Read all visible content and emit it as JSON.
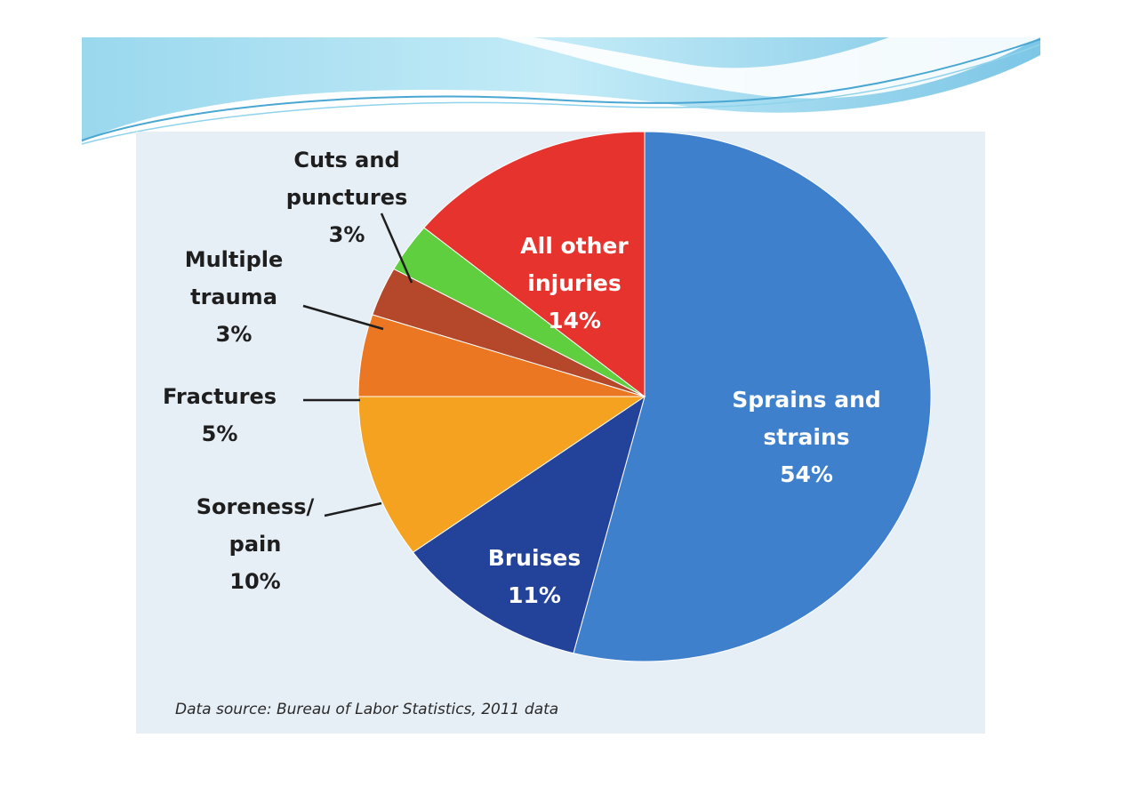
{
  "colors": {
    "header_light": "#b9e6f5",
    "header_mid": "#7fcbe8",
    "panel_bg": "#e6eef6"
  },
  "source": {
    "prefix": "Data source: ",
    "org": "Bureau of Labor Statistics,",
    "year": "2011 data"
  },
  "chart_data": {
    "type": "pie",
    "title": "",
    "unit": "%",
    "start": "Sprains and strains starts at 12 o'clock, slices go clockwise",
    "slices": [
      {
        "label_lines": [
          "Sprains and",
          "strains",
          "54%"
        ],
        "value": 54,
        "color": "#3f80cc"
      },
      {
        "label_lines": [
          "Bruises",
          "11%"
        ],
        "value": 11,
        "color": "#23439a"
      },
      {
        "label_lines": [
          "Soreness/",
          "pain",
          "10%"
        ],
        "value": 10,
        "color": "#f4a21f"
      },
      {
        "label_lines": [
          "Fractures",
          "5%"
        ],
        "value": 5,
        "color": "#ec7722"
      },
      {
        "label_lines": [
          "Multiple",
          "trauma",
          "3%"
        ],
        "value": 3,
        "color": "#b5472a"
      },
      {
        "label_lines": [
          "Cuts and",
          "punctures",
          "3%"
        ],
        "value": 3,
        "color": "#5fcf3f"
      },
      {
        "label_lines": [
          "All other",
          "injuries",
          "14%"
        ],
        "value": 14,
        "color": "#e7332d"
      }
    ]
  }
}
